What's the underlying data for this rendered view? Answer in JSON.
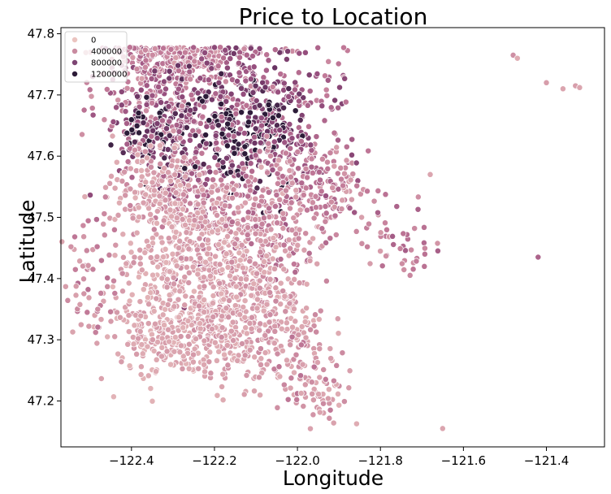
{
  "chart_data": {
    "type": "scatter",
    "title": "Price to Location",
    "xlabel": "Longitude",
    "ylabel": "Latitude",
    "xlim": [
      -122.57,
      -121.26
    ],
    "ylim": [
      47.125,
      47.81
    ],
    "xticks": [
      -122.4,
      -122.2,
      -122.0,
      -121.8,
      -121.6,
      -121.4
    ],
    "xtick_labels": [
      "−122.4",
      "−122.2",
      "−122.0",
      "−121.8",
      "−121.6",
      "−121.4"
    ],
    "yticks": [
      47.2,
      47.3,
      47.4,
      47.5,
      47.6,
      47.7,
      47.8
    ],
    "ytick_labels": [
      "47.2",
      "47.3",
      "47.4",
      "47.5",
      "47.6",
      "47.7",
      "47.8"
    ],
    "grid": false,
    "legend": {
      "placement": "top-left",
      "entries": [
        {
          "label": "0",
          "color": "#ebc4c0"
        },
        {
          "label": "400000",
          "color": "#c98ba0"
        },
        {
          "label": "800000",
          "color": "#7d4573"
        },
        {
          "label": "1200000",
          "color": "#2c1b38"
        }
      ]
    },
    "hue_scale": {
      "min": 0,
      "max": 1400000,
      "colors": [
        "#ebc4c0",
        "#d9a1ad",
        "#c07897",
        "#98507f",
        "#6b3564",
        "#2c1b38"
      ]
    },
    "point_groups": [
      {
        "lon": -122.35,
        "lat": 47.71,
        "spread_lon": 0.07,
        "spread_lat": 0.06,
        "n": 260,
        "price": 650000
      },
      {
        "lon": -122.3,
        "lat": 47.76,
        "spread_lon": 0.07,
        "spread_lat": 0.02,
        "n": 160,
        "price": 520000
      },
      {
        "lon": -122.36,
        "lat": 47.64,
        "spread_lon": 0.04,
        "spread_lat": 0.03,
        "n": 110,
        "price": 1050000
      },
      {
        "lon": -122.28,
        "lat": 47.63,
        "spread_lon": 0.03,
        "spread_lat": 0.05,
        "n": 90,
        "price": 900000
      },
      {
        "lon": -122.34,
        "lat": 47.55,
        "spread_lon": 0.05,
        "spread_lat": 0.04,
        "n": 140,
        "price": 320000
      },
      {
        "lon": -122.24,
        "lat": 47.54,
        "spread_lon": 0.04,
        "spread_lat": 0.05,
        "n": 90,
        "price": 700000
      },
      {
        "lon": -122.13,
        "lat": 47.71,
        "spread_lon": 0.08,
        "spread_lat": 0.06,
        "n": 220,
        "price": 760000
      },
      {
        "lon": -122.16,
        "lat": 47.63,
        "spread_lon": 0.05,
        "spread_lat": 0.04,
        "n": 130,
        "price": 1300000
      },
      {
        "lon": -122.06,
        "lat": 47.64,
        "spread_lon": 0.05,
        "spread_lat": 0.05,
        "n": 150,
        "price": 1100000
      },
      {
        "lon": -121.98,
        "lat": 47.58,
        "spread_lon": 0.06,
        "spread_lat": 0.04,
        "n": 120,
        "price": 620000
      },
      {
        "lon": -122.18,
        "lat": 47.48,
        "spread_lon": 0.07,
        "spread_lat": 0.05,
        "n": 220,
        "price": 380000
      },
      {
        "lon": -122.05,
        "lat": 47.48,
        "spread_lon": 0.07,
        "spread_lat": 0.05,
        "n": 170,
        "price": 480000
      },
      {
        "lon": -122.3,
        "lat": 47.45,
        "spread_lon": 0.07,
        "spread_lat": 0.07,
        "n": 240,
        "price": 250000
      },
      {
        "lon": -122.2,
        "lat": 47.38,
        "spread_lon": 0.07,
        "spread_lat": 0.05,
        "n": 200,
        "price": 290000
      },
      {
        "lon": -122.08,
        "lat": 47.37,
        "spread_lon": 0.06,
        "spread_lat": 0.05,
        "n": 170,
        "price": 310000
      },
      {
        "lon": -122.34,
        "lat": 47.31,
        "spread_lon": 0.06,
        "spread_lat": 0.04,
        "n": 190,
        "price": 230000
      },
      {
        "lon": -122.2,
        "lat": 47.3,
        "spread_lon": 0.07,
        "spread_lat": 0.04,
        "n": 150,
        "price": 260000
      },
      {
        "lon": -122.05,
        "lat": 47.31,
        "spread_lon": 0.06,
        "spread_lat": 0.04,
        "n": 90,
        "price": 300000
      },
      {
        "lon": -122.48,
        "lat": 47.4,
        "spread_lon": 0.04,
        "spread_lat": 0.05,
        "n": 60,
        "price": 450000
      },
      {
        "lon": -121.9,
        "lat": 47.54,
        "spread_lon": 0.05,
        "spread_lat": 0.03,
        "n": 60,
        "price": 520000
      },
      {
        "lon": -121.75,
        "lat": 47.47,
        "spread_lon": 0.05,
        "spread_lat": 0.03,
        "n": 45,
        "price": 520000
      },
      {
        "lon": -121.95,
        "lat": 47.21,
        "spread_lon": 0.04,
        "spread_lat": 0.03,
        "n": 50,
        "price": 300000
      },
      {
        "lon": -121.92,
        "lat": 47.68,
        "spread_lon": 0.04,
        "spread_lat": 0.06,
        "n": 40,
        "price": 650000
      },
      {
        "lon": -122.0,
        "lat": 47.25,
        "spread_lon": 0.05,
        "spread_lat": 0.03,
        "n": 40,
        "price": 420000
      }
    ],
    "outlier_points": [
      {
        "lon": -121.48,
        "lat": 47.765,
        "price": 400000
      },
      {
        "lon": -121.47,
        "lat": 47.76,
        "price": 200000
      },
      {
        "lon": -121.4,
        "lat": 47.72,
        "price": 300000
      },
      {
        "lon": -121.36,
        "lat": 47.71,
        "price": 250000
      },
      {
        "lon": -121.33,
        "lat": 47.715,
        "price": 300000
      },
      {
        "lon": -121.32,
        "lat": 47.712,
        "price": 250000
      },
      {
        "lon": -121.68,
        "lat": 47.57,
        "price": 250000
      },
      {
        "lon": -121.42,
        "lat": 47.435,
        "price": 700000
      },
      {
        "lon": -121.65,
        "lat": 47.155,
        "price": 250000
      }
    ]
  }
}
